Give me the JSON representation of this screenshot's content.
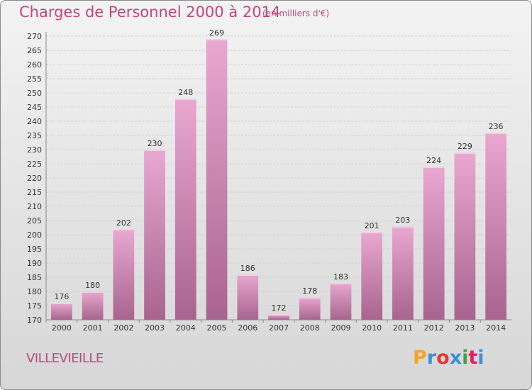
{
  "chart_title": "Charges de Personnel 2000 à 2014",
  "chart_subtitle": "(en milliers d'€)",
  "commune_name": "VILLEVIEILLE",
  "logo": {
    "text": "Proxiti",
    "letters": [
      "P",
      "r",
      "o",
      "x",
      "i",
      "t",
      "i"
    ],
    "letter_colors": [
      "#f5a623",
      "#3d8fd6",
      "#e53935",
      "#3d8fd6",
      "#43a047",
      "#e91e63",
      "#3d8fd6"
    ]
  },
  "colors": {
    "title": "#c2467e",
    "bar_top": "#e8a8d0",
    "bar_bottom": "#a8648e",
    "grid": "#cfcfcf",
    "axis_text": "#333333"
  },
  "chart_data": {
    "type": "bar",
    "title": "Charges de Personnel 2000 à 2014",
    "subtitle": "(en milliers d'€)",
    "categories": [
      "2000",
      "2001",
      "2002",
      "2003",
      "2004",
      "2005",
      "2006",
      "2007",
      "2008",
      "2009",
      "2010",
      "2011",
      "2012",
      "2013",
      "2014"
    ],
    "values": [
      176,
      180,
      202,
      230,
      248,
      269,
      186,
      172,
      178,
      183,
      201,
      203,
      224,
      229,
      236
    ],
    "ylim": [
      170,
      270
    ],
    "ytick_step": 5,
    "yticks": [
      "170",
      "175",
      "180",
      "185",
      "190",
      "195",
      "200",
      "205",
      "210",
      "215",
      "220",
      "225",
      "230",
      "235",
      "240",
      "245",
      "250",
      "255",
      "260",
      "265",
      "270"
    ],
    "grid": true,
    "data_labels": true,
    "legend": "none"
  }
}
